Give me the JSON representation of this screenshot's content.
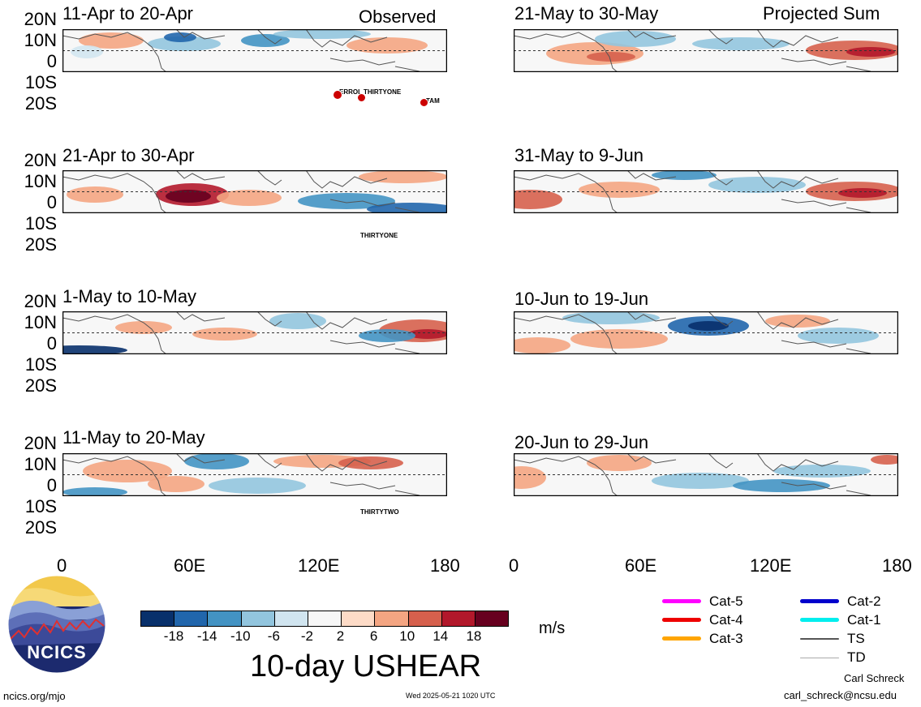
{
  "headers": {
    "observed": "Observed",
    "projected": "Projected Sum"
  },
  "lat_labels": [
    "20N",
    "10N",
    "0",
    "10S",
    "20S"
  ],
  "lon_labels": [
    "0",
    "60E",
    "120E",
    "180"
  ],
  "panels": {
    "left": [
      {
        "title": "11-Apr to 20-Apr",
        "storms": [
          "ERROL",
          "THIRTYONE",
          "TAM"
        ]
      },
      {
        "title": "21-Apr to 30-Apr",
        "storms": [
          "THIRTYONE"
        ]
      },
      {
        "title": "1-May to 10-May",
        "storms": []
      },
      {
        "title": "11-May to 20-May",
        "storms": [
          "THIRTYTWO"
        ]
      }
    ],
    "right": [
      {
        "title": "21-May to 30-May",
        "storms": []
      },
      {
        "title": "31-May to 9-Jun",
        "storms": []
      },
      {
        "title": "10-Jun to 19-Jun",
        "storms": []
      },
      {
        "title": "20-Jun to 29-Jun",
        "storms": []
      }
    ]
  },
  "colorbar": {
    "ticks": [
      "-18",
      "-14",
      "-10",
      "-6",
      "-2",
      "2",
      "6",
      "10",
      "14",
      "18"
    ],
    "colors": [
      "#08306b",
      "#2166ac",
      "#4393c3",
      "#92c5de",
      "#d1e5f0",
      "#f7f7f7",
      "#fddbc7",
      "#f4a582",
      "#d6604d",
      "#b2182b",
      "#67001f"
    ],
    "unit": "m/s"
  },
  "title": "10-day USHEAR",
  "legend": [
    {
      "label": "Cat-5",
      "color": "#ff00ff"
    },
    {
      "label": "Cat-4",
      "color": "#ee0000"
    },
    {
      "label": "Cat-3",
      "color": "#ffa500"
    },
    {
      "label": "Cat-2",
      "color": "#0000cc"
    },
    {
      "label": "Cat-1",
      "color": "#00eeee"
    },
    {
      "label": "TS",
      "color": "#555555"
    },
    {
      "label": "TD",
      "color": "#aaaaaa"
    }
  ],
  "logo": {
    "text": "NCICS"
  },
  "footer": {
    "url": "ncics.org/mjo",
    "timestamp": "Wed 2025-05-21 1020 UTC",
    "author": "Carl Schreck",
    "email": "carl_schreck@ncsu.edu"
  }
}
